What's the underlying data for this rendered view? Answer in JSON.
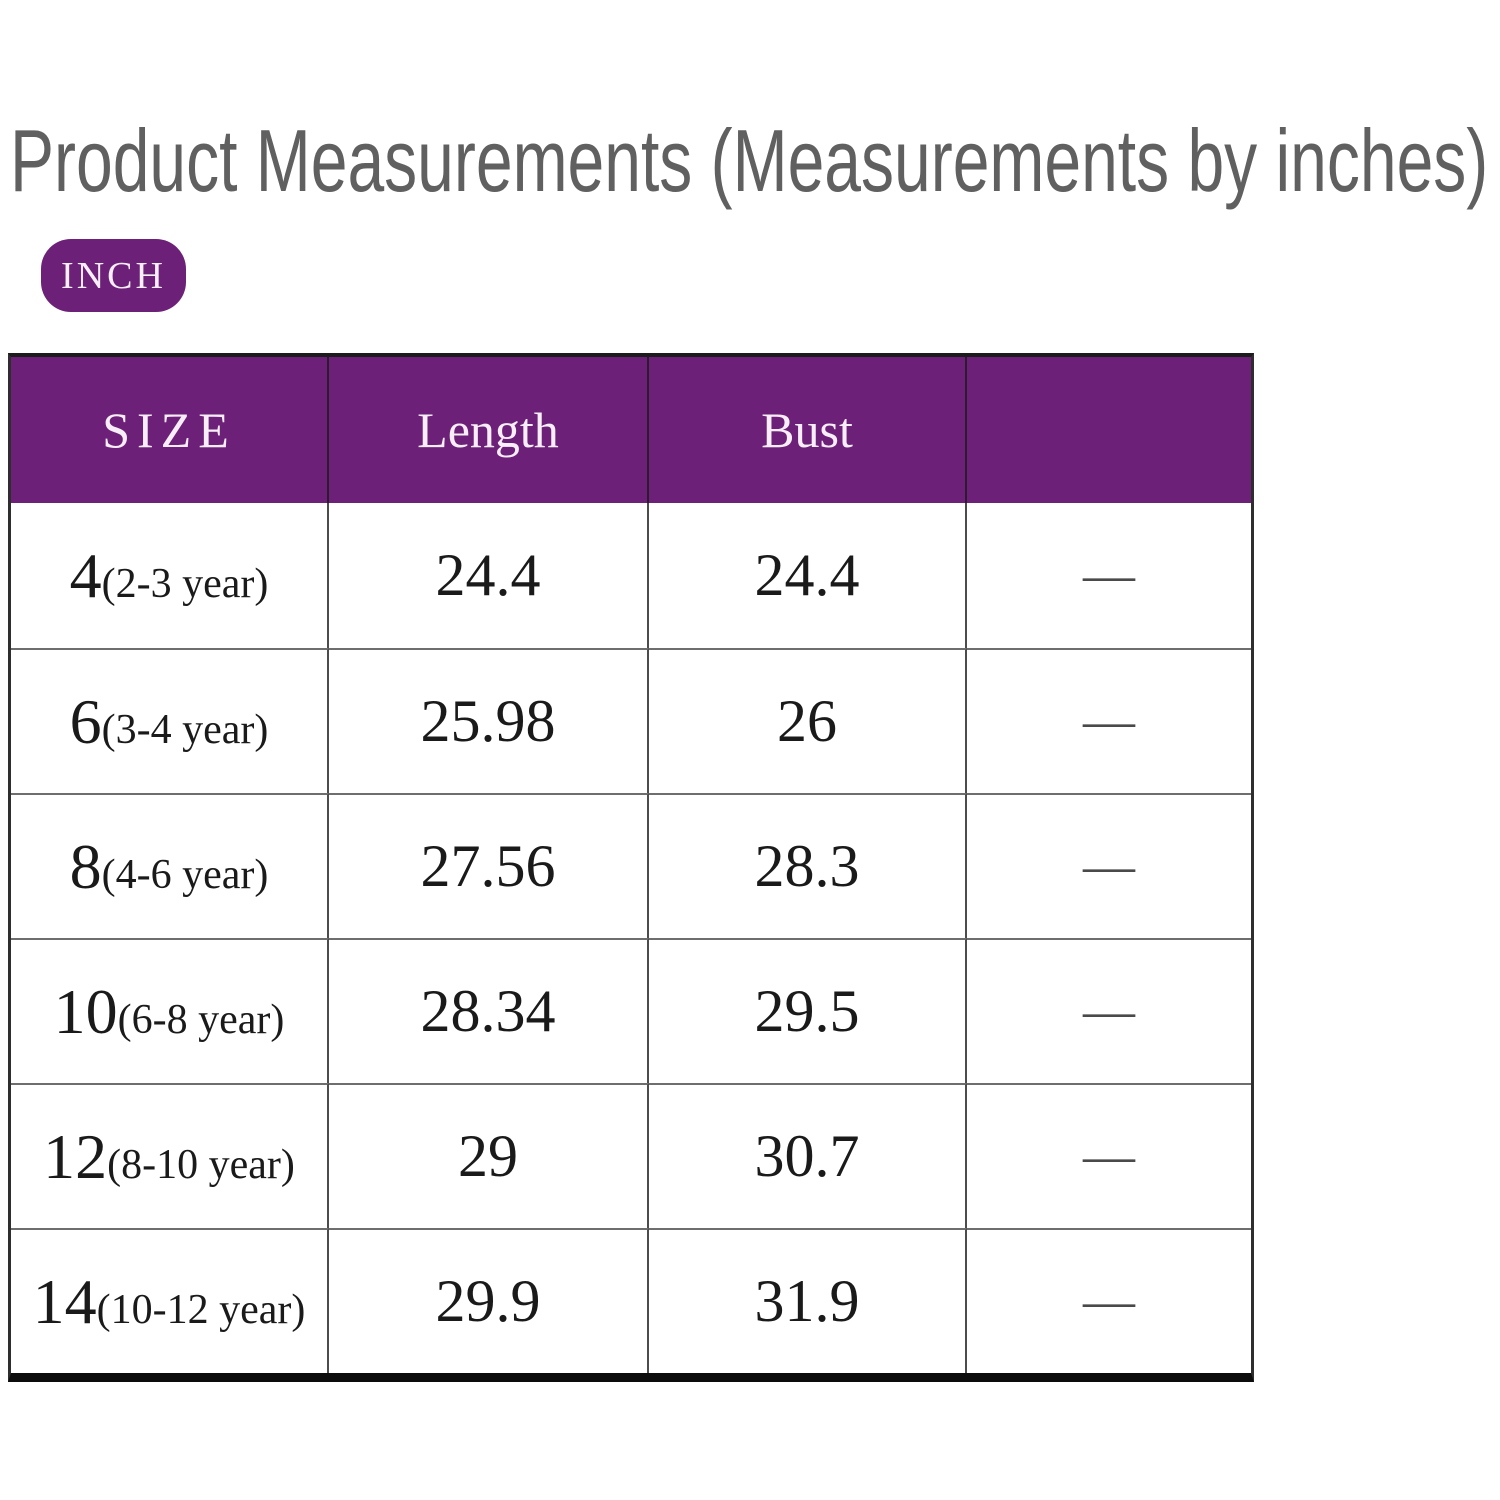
{
  "title": "Product Measurements (Measurements by inches)",
  "unit_badge": {
    "label": "INCH"
  },
  "colors": {
    "accent_purple": "#6d2077",
    "title_gray": "#606060",
    "header_text": "#f7eef8",
    "body_text": "#1a1a1a",
    "dash_gray": "#4a4a4a"
  },
  "chart_data": {
    "type": "table",
    "title": "Product Measurements (Measurements by inches)",
    "unit": "INCH",
    "headers": [
      "SIZE",
      "Length",
      "Bust",
      ""
    ],
    "rows": [
      {
        "size": "4",
        "note": "(2-3 year)",
        "length": "24.4",
        "bust": "24.4",
        "extra": "—"
      },
      {
        "size": "6",
        "note": "(3-4 year)",
        "length": "25.98",
        "bust": "26",
        "extra": "—"
      },
      {
        "size": "8",
        "note": "(4-6 year)",
        "length": "27.56",
        "bust": "28.3",
        "extra": "—"
      },
      {
        "size": "10",
        "note": "(6-8 year)",
        "length": "28.34",
        "bust": "29.5",
        "extra": "—"
      },
      {
        "size": "12",
        "note": "(8-10 year)",
        "length": "29",
        "bust": "30.7",
        "extra": "—"
      },
      {
        "size": "14",
        "note": "(10-12 year)",
        "length": "29.9",
        "bust": "31.9",
        "extra": "—"
      }
    ]
  }
}
